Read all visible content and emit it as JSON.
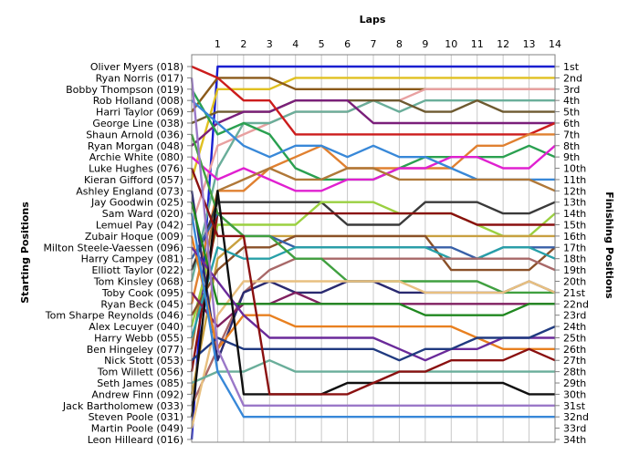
{
  "chart_data": {
    "type": "line",
    "title": "",
    "xlabel": "Laps",
    "ylabel_left": "Starting Positions",
    "ylabel_right": "Finishing Positions",
    "x": [
      0,
      1,
      2,
      3,
      4,
      5,
      6,
      7,
      8,
      9,
      10,
      11,
      12,
      13,
      14
    ],
    "x_tick_labels": [
      "1",
      "2",
      "3",
      "4",
      "5",
      "6",
      "7",
      "8",
      "9",
      "10",
      "11",
      "12",
      "13",
      "14"
    ],
    "ylim": [
      1,
      34
    ],
    "y_inverted": true,
    "grid": true,
    "starting_positions": [
      "Oliver Myers (018)",
      "Ryan Norris (017)",
      "Bobby Thompson (019)",
      "Rob Holland (008)",
      "Harri Taylor (069)",
      "George Line (038)",
      "Shaun Arnold (036)",
      "Ryan Morgan (048)",
      "Archie White (080)",
      "Luke Hughes (076)",
      "Kieran Gifford (057)",
      "Ashley England (073)",
      "Jay Goodwin (025)",
      "Sam Ward (020)",
      "Lemuel Pay (042)",
      "Zubair Hoque (009)",
      "Milton Steele-Vaessen (096)",
      "Harry Campey (081)",
      "Elliott Taylor (022)",
      "Tom Kinsley (068)",
      "Toby Cook (095)",
      "Ryan Beck (045)",
      "Tom Sharpe Reynolds (046)",
      "Alex Lecuyer (040)",
      "Harry Webb (055)",
      "Ben Hingeley (077)",
      "Nick Stott (053)",
      "Tom Willett (056)",
      "Seth James (085)",
      "Andrew Finn (092)",
      "Jack Bartholomew (033)",
      "Steven Poole (031)",
      "Martin Poole (049)",
      "Leon Hilleard (016)"
    ],
    "finishing_positions": [
      "1st",
      "2nd",
      "3rd",
      "4th",
      "5th",
      "6th",
      "7th",
      "8th",
      "9th",
      "10th",
      "11th",
      "12th",
      "13th",
      "14th",
      "15th",
      "16th",
      "17th",
      "18th",
      "19th",
      "20th",
      "21st",
      "22nd",
      "23rd",
      "24th",
      "25th",
      "26th",
      "27th",
      "28th",
      "29th",
      "30th",
      "31st",
      "32nd",
      "33rd",
      "34th"
    ],
    "series": [
      {
        "color": "#1a1fd0",
        "values": [
          34,
          1,
          1,
          1,
          1,
          1,
          1,
          1,
          1,
          1,
          1,
          1,
          1,
          1,
          1
        ]
      },
      {
        "color": "#e0c020",
        "values": [
          11,
          3,
          3,
          3,
          2,
          2,
          2,
          2,
          2,
          2,
          2,
          2,
          2,
          2,
          2
        ]
      },
      {
        "color": "#8b5a1a",
        "values": [
          5,
          2,
          2,
          2,
          3,
          3,
          3,
          3,
          3,
          3,
          3,
          3,
          3,
          3,
          3
        ]
      },
      {
        "color": "#e8a0a0",
        "values": [
          15,
          8,
          7,
          6,
          5,
          5,
          5,
          4,
          4,
          3,
          3,
          3,
          3,
          3,
          3
        ]
      },
      {
        "color": "#6aae9a",
        "values": [
          20,
          10,
          6,
          6,
          5,
          5,
          5,
          4,
          5,
          4,
          4,
          4,
          4,
          4,
          4
        ]
      },
      {
        "color": "#6e5a30",
        "values": [
          6,
          5,
          5,
          5,
          4,
          4,
          4,
          4,
          4,
          5,
          5,
          4,
          5,
          5,
          5
        ]
      },
      {
        "color": "#7a1f7a",
        "values": [
          8,
          6,
          5,
          5,
          4,
          4,
          4,
          6,
          6,
          6,
          6,
          6,
          6,
          6,
          6
        ]
      },
      {
        "color": "#cc1c1c",
        "values": [
          1,
          2,
          4,
          4,
          7,
          7,
          7,
          7,
          7,
          7,
          7,
          7,
          7,
          7,
          6
        ]
      },
      {
        "color": "#e08030",
        "values": [
          22,
          12,
          12,
          10,
          9,
          8,
          10,
          10,
          10,
          10,
          10,
          8,
          8,
          7,
          7
        ]
      },
      {
        "color": "#2aa050",
        "values": [
          3,
          7,
          6,
          7,
          10,
          11,
          11,
          11,
          10,
          9,
          9,
          9,
          9,
          8,
          9
        ]
      },
      {
        "color": "#e020d0",
        "values": [
          9,
          11,
          10,
          11,
          12,
          12,
          11,
          11,
          10,
          10,
          9,
          9,
          10,
          10,
          8
        ]
      },
      {
        "color": "#3888d8",
        "values": [
          4,
          6,
          8,
          9,
          8,
          8,
          9,
          8,
          9,
          9,
          10,
          11,
          11,
          11,
          11
        ]
      },
      {
        "color": "#b07838",
        "values": [
          26,
          12,
          11,
          10,
          11,
          11,
          10,
          10,
          11,
          11,
          11,
          11,
          11,
          11,
          12
        ]
      },
      {
        "color": "#3a3a3a",
        "values": [
          19,
          13,
          13,
          13,
          13,
          13,
          15,
          15,
          15,
          13,
          13,
          13,
          14,
          14,
          13
        ]
      },
      {
        "color": "#9ad040",
        "values": [
          24,
          15,
          15,
          15,
          15,
          13,
          13,
          13,
          14,
          14,
          14,
          15,
          16,
          16,
          14
        ]
      },
      {
        "color": "#8a1010",
        "values": [
          28,
          14,
          14,
          14,
          14,
          14,
          14,
          14,
          14,
          14,
          14,
          15,
          15,
          15,
          15
        ]
      },
      {
        "color": "#c8a040",
        "values": [
          30,
          18,
          16,
          16,
          16,
          16,
          16,
          16,
          16,
          16,
          16,
          16,
          16,
          16,
          16
        ]
      },
      {
        "color": "#8a5028",
        "values": [
          23,
          19,
          17,
          17,
          16,
          16,
          16,
          16,
          16,
          16,
          19,
          19,
          19,
          19,
          17
        ]
      },
      {
        "color": "#3860a8",
        "values": [
          18,
          14,
          16,
          16,
          17,
          17,
          17,
          17,
          17,
          17,
          17,
          18,
          17,
          17,
          17
        ]
      },
      {
        "color": "#28a0a8",
        "values": [
          25,
          17,
          18,
          18,
          17,
          17,
          17,
          17,
          17,
          17,
          18,
          18,
          17,
          17,
          18
        ]
      },
      {
        "color": "#a86868",
        "values": [
          31,
          26,
          21,
          19,
          18,
          18,
          18,
          18,
          18,
          18,
          18,
          18,
          18,
          18,
          19
        ]
      },
      {
        "color": "#40a040",
        "values": [
          7,
          14,
          16,
          16,
          18,
          18,
          20,
          20,
          20,
          20,
          20,
          20,
          21,
          21,
          21
        ]
      },
      {
        "color": "#2a2a70",
        "values": [
          12,
          27,
          21,
          20,
          21,
          21,
          20,
          20,
          21,
          21,
          21,
          21,
          21,
          20,
          21
        ]
      },
      {
        "color": "#e8c080",
        "values": [
          33,
          23,
          20,
          20,
          20,
          20,
          20,
          20,
          20,
          21,
          21,
          21,
          21,
          20,
          21
        ]
      },
      {
        "color": "#802060",
        "values": [
          21,
          24,
          22,
          22,
          21,
          22,
          22,
          22,
          22,
          22,
          22,
          22,
          22,
          22,
          22
        ]
      },
      {
        "color": "#208820",
        "values": [
          13,
          22,
          22,
          22,
          22,
          22,
          22,
          22,
          22,
          23,
          23,
          23,
          23,
          22,
          22
        ]
      },
      {
        "color": "#e88020",
        "values": [
          16,
          26,
          23,
          23,
          24,
          24,
          24,
          24,
          24,
          24,
          24,
          25,
          26,
          26,
          26
        ]
      },
      {
        "color": "#6a2a9a",
        "values": [
          17,
          20,
          23,
          25,
          25,
          25,
          25,
          25,
          26,
          27,
          26,
          26,
          25,
          25,
          25
        ]
      },
      {
        "color": "#203a80",
        "values": [
          27,
          25,
          26,
          26,
          26,
          26,
          26,
          26,
          27,
          26,
          26,
          25,
          25,
          25,
          24
        ]
      },
      {
        "color": "#6aae9a",
        "values": [
          29,
          28,
          28,
          27,
          28,
          28,
          28,
          28,
          28,
          28,
          28,
          28,
          28,
          28,
          28
        ]
      },
      {
        "color": "#101010",
        "values": [
          32,
          12,
          30,
          30,
          30,
          30,
          29,
          29,
          29,
          29,
          29,
          29,
          29,
          30,
          30
        ]
      },
      {
        "color": "#8a1010",
        "values": [
          10,
          16,
          16,
          30,
          30,
          30,
          30,
          29,
          28,
          28,
          27,
          27,
          27,
          26,
          27
        ]
      },
      {
        "color": "#9a78c8",
        "values": [
          2,
          26,
          31,
          31,
          31,
          31,
          31,
          31,
          31,
          31,
          31,
          31,
          31,
          31,
          31
        ]
      },
      {
        "color": "#3888d8",
        "values": [
          14,
          28,
          32,
          32,
          32,
          32,
          32,
          32,
          32,
          32,
          32,
          32,
          32,
          32,
          32
        ]
      }
    ]
  }
}
